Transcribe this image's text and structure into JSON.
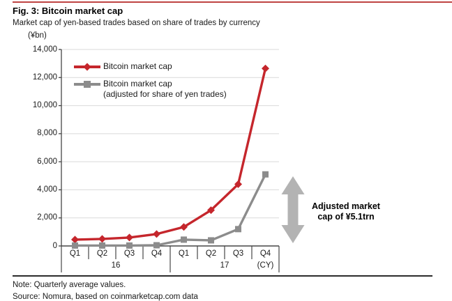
{
  "header": {
    "title": "Fig. 3: Bitcoin market cap",
    "subtitle": "Market cap of yen-based trades based on share of trades by currency"
  },
  "chart_data": {
    "type": "line",
    "unit_label": "(¥bn)",
    "categories": [
      "Q1",
      "Q2",
      "Q3",
      "Q4",
      "Q1",
      "Q2",
      "Q3",
      "Q4"
    ],
    "year_groups": [
      {
        "label": "16",
        "span": [
          0,
          3
        ]
      },
      {
        "label": "17",
        "span": [
          4,
          7
        ]
      }
    ],
    "axis_suffix": "(CY)",
    "ylim": [
      0,
      14000
    ],
    "ytick_step": 2000,
    "grid": "horizontal",
    "legend_position": "top-left-inside",
    "series": [
      {
        "name": "Bitcoin market cap",
        "color": "#c5262c",
        "marker": "diamond",
        "values": [
          450,
          500,
          600,
          850,
          1350,
          2550,
          4400,
          12650
        ]
      },
      {
        "name": "Bitcoin market cap (adjusted for share of yen trades)",
        "color": "#8c8c8c",
        "marker": "square",
        "values": [
          30,
          30,
          30,
          50,
          450,
          400,
          1200,
          5100
        ]
      }
    ]
  },
  "legend": {
    "item1_label": "Bitcoin market cap",
    "item2_label_line1": "Bitcoin market cap",
    "item2_label_line2": "(adjusted for share of yen trades)"
  },
  "annotation": {
    "line1": "Adjusted market",
    "line2": "cap of ¥5.1trn",
    "arrow_color": "#b3b3b3"
  },
  "footer": {
    "note": "Note: Quarterly average values.",
    "source": "Source: Nomura, based on coinmarketcap.com data"
  },
  "colors": {
    "accent_red": "#c5262c",
    "series_gray": "#8c8c8c",
    "arrow_gray": "#b3b3b3",
    "grid_gray": "#d9d9d9",
    "axis_dark": "#454545",
    "top_rule_red": "#bf4341"
  }
}
